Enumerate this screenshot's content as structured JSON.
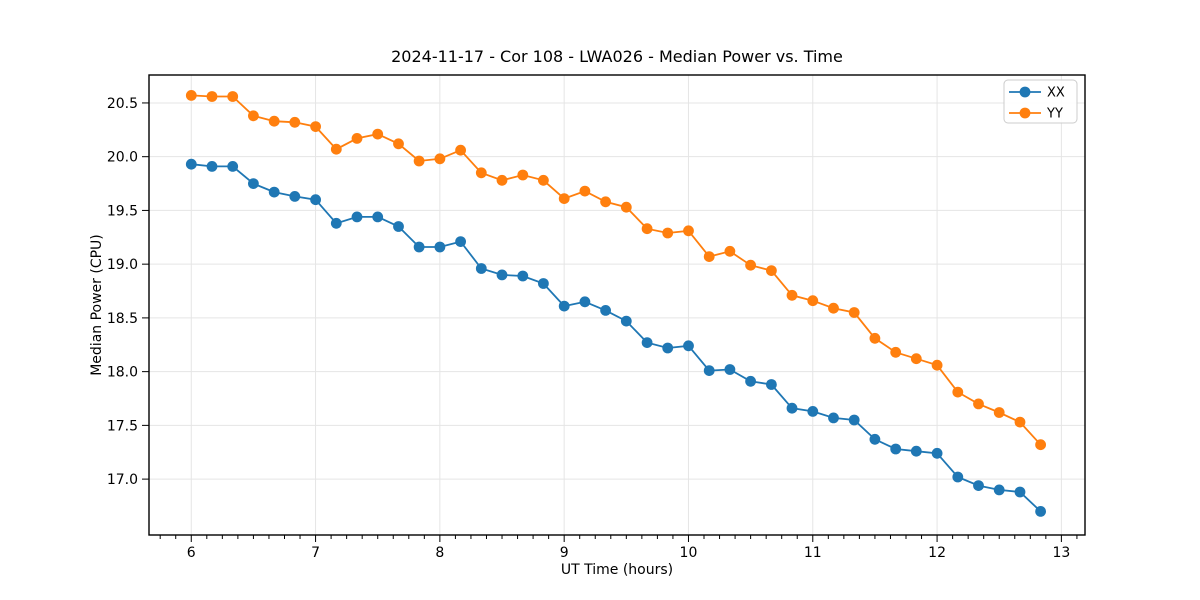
{
  "chart_data": {
    "type": "line",
    "title": "2024-11-17 - Cor 108 - LWA026 - Median Power vs. Time",
    "xlabel": "UT Time (hours)",
    "ylabel": "Median Power (CPU)",
    "xlim": [
      5.66,
      13.19
    ],
    "ylim": [
      16.48,
      20.76
    ],
    "x_ticks": [
      6,
      7,
      8,
      9,
      10,
      11,
      12,
      13
    ],
    "x_tick_labels": [
      "6",
      "7",
      "8",
      "9",
      "10",
      "11",
      "12",
      "13"
    ],
    "x_minor_tick_step": 0.125,
    "y_ticks": [
      17.0,
      17.5,
      18.0,
      18.5,
      19.0,
      19.5,
      20.0,
      20.5
    ],
    "y_tick_labels": [
      "17.0",
      "17.5",
      "18.0",
      "18.5",
      "19.0",
      "19.5",
      "20.0",
      "20.5"
    ],
    "grid": true,
    "grid_color": "#e5e5e5",
    "legend_position": "upper right",
    "x": [
      6.0,
      6.167,
      6.333,
      6.5,
      6.667,
      6.833,
      7.0,
      7.167,
      7.333,
      7.5,
      7.667,
      7.833,
      8.0,
      8.167,
      8.333,
      8.5,
      8.667,
      8.833,
      9.0,
      9.167,
      9.333,
      9.5,
      9.667,
      9.833,
      10.0,
      10.167,
      10.333,
      10.5,
      10.667,
      10.833,
      11.0,
      11.167,
      11.333,
      11.5,
      11.667,
      11.833,
      12.0,
      12.167,
      12.333,
      12.5,
      12.667,
      12.833
    ],
    "series": [
      {
        "name": "XX",
        "color": "#1f77b4",
        "values": [
          19.93,
          19.91,
          19.91,
          19.75,
          19.67,
          19.63,
          19.6,
          19.38,
          19.44,
          19.44,
          19.35,
          19.16,
          19.16,
          19.21,
          18.96,
          18.9,
          18.89,
          18.82,
          18.61,
          18.65,
          18.57,
          18.47,
          18.27,
          18.22,
          18.24,
          18.01,
          18.02,
          17.91,
          17.88,
          17.66,
          17.63,
          17.57,
          17.55,
          17.37,
          17.28,
          17.26,
          17.24,
          17.02,
          16.94,
          16.9,
          16.88,
          16.7
        ]
      },
      {
        "name": "YY",
        "color": "#ff7f0e",
        "values": [
          20.57,
          20.56,
          20.56,
          20.38,
          20.33,
          20.32,
          20.28,
          20.07,
          20.17,
          20.21,
          20.12,
          19.96,
          19.98,
          20.06,
          19.85,
          19.78,
          19.83,
          19.78,
          19.61,
          19.68,
          19.58,
          19.53,
          19.33,
          19.29,
          19.31,
          19.07,
          19.12,
          18.99,
          18.94,
          18.71,
          18.66,
          18.59,
          18.55,
          18.31,
          18.18,
          18.12,
          18.06,
          17.81,
          17.7,
          17.62,
          17.53,
          17.32
        ]
      }
    ]
  }
}
